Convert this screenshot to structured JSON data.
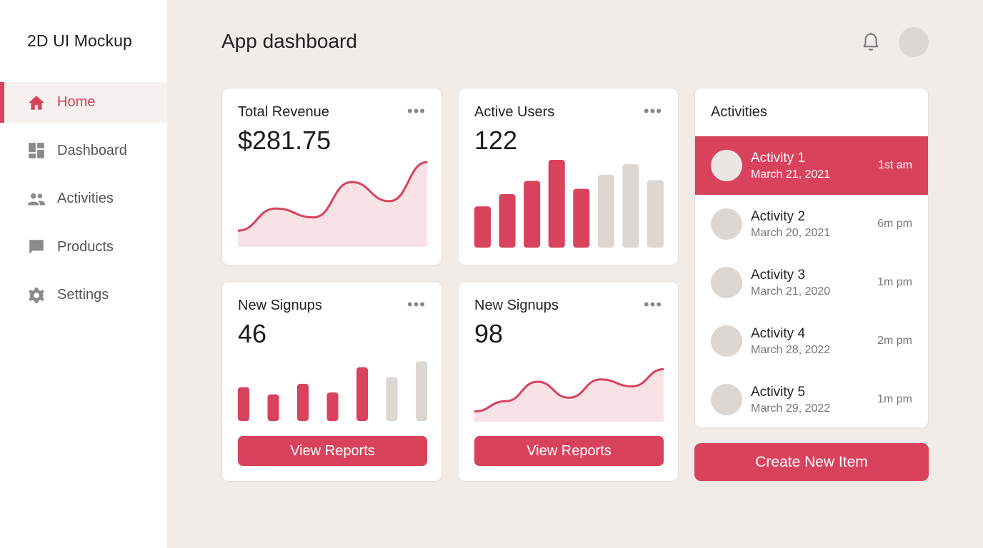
{
  "app": {
    "brand": "2D UI Mockup"
  },
  "colors": {
    "accent": "#d8425c",
    "muted_bar": "#dcd7d3",
    "area_fill": "#f8e2e6"
  },
  "sidebar": {
    "items": [
      {
        "label": "Home",
        "icon": "home-icon",
        "active": true
      },
      {
        "label": "Dashboard",
        "icon": "dashboard-icon",
        "active": false
      },
      {
        "label": "Activities",
        "icon": "people-icon",
        "active": false
      },
      {
        "label": "Products",
        "icon": "chat-icon",
        "active": false
      },
      {
        "label": "Settings",
        "icon": "gear-icon",
        "active": false
      }
    ]
  },
  "header": {
    "title": "App dashboard",
    "bell_icon": "bell-icon",
    "avatar": "avatar"
  },
  "cards": {
    "revenue": {
      "title": "Total Revenue",
      "value": "$281.75",
      "menu": "•••"
    },
    "users": {
      "title": "Active Users",
      "value": "122",
      "menu": "•••"
    },
    "signups1": {
      "title": "New Signups",
      "value": "46",
      "menu": "•••",
      "button": "View Reports"
    },
    "signups2": {
      "title": "New Signups",
      "value": "98",
      "menu": "•••",
      "button": "View Reports"
    }
  },
  "activities": {
    "title": "Activities",
    "items": [
      {
        "name": "Activity 1",
        "date": "March 21, 2021",
        "time": "1st am",
        "active": true
      },
      {
        "name": "Activity 2",
        "date": "March 20, 2021",
        "time": "6m pm",
        "active": false
      },
      {
        "name": "Activity 3",
        "date": "March 21, 2020",
        "time": "1m pm",
        "active": false
      },
      {
        "name": "Activity 4",
        "date": "March 28, 2022",
        "time": "2m pm",
        "active": false
      },
      {
        "name": "Activity 5",
        "date": "March 29, 2022",
        "time": "1m pm",
        "active": false
      }
    ],
    "create_button": "Create New Item"
  },
  "chart_data": [
    {
      "type": "area",
      "id": "revenue",
      "y": [
        22,
        52,
        40,
        88,
        62,
        115
      ],
      "ylim": [
        0,
        120
      ]
    },
    {
      "type": "bar",
      "id": "users",
      "values": [
        47,
        61,
        76,
        100,
        67,
        83,
        95,
        77
      ],
      "highlighted": [
        true,
        true,
        true,
        true,
        true,
        false,
        false,
        false
      ],
      "ylim": [
        0,
        100
      ]
    },
    {
      "type": "bar",
      "id": "signups1",
      "values": [
        51,
        40,
        56,
        43,
        81,
        66,
        90
      ],
      "highlighted": [
        true,
        true,
        true,
        true,
        true,
        false,
        false
      ],
      "ylim": [
        0,
        100
      ]
    },
    {
      "type": "area",
      "id": "signups2",
      "y": [
        18,
        36,
        70,
        42,
        74,
        62,
        92
      ],
      "ylim": [
        0,
        120
      ]
    }
  ]
}
